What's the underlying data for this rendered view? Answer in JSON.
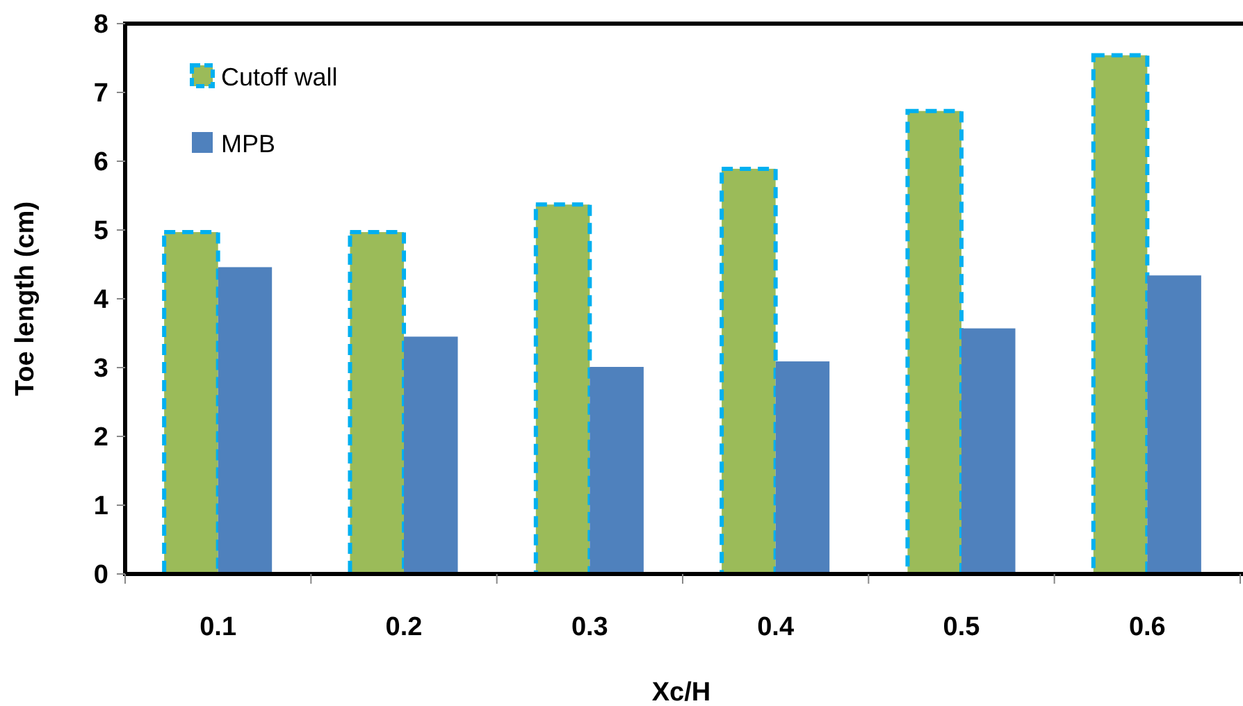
{
  "chart_data": {
    "type": "bar",
    "xlabel": "Xc/H",
    "ylabel": "Toe length (cm)",
    "categories": [
      "0.1",
      "0.2",
      "0.3",
      "0.4",
      "0.5",
      "0.6"
    ],
    "series": [
      {
        "name": "Cutoff wall",
        "color": "#9bbb59",
        "line_style": "dashed",
        "values": [
          4.97,
          4.97,
          5.37,
          5.89,
          6.73,
          7.54
        ]
      },
      {
        "name": "MPB",
        "color": "#4f81bd",
        "values": [
          4.46,
          3.45,
          3.01,
          3.09,
          3.57,
          4.34
        ]
      }
    ],
    "ylim": [
      0,
      8
    ],
    "yticks": [
      0,
      1,
      2,
      3,
      4,
      5,
      6,
      7,
      8
    ],
    "grid": false,
    "legend": "top left"
  }
}
